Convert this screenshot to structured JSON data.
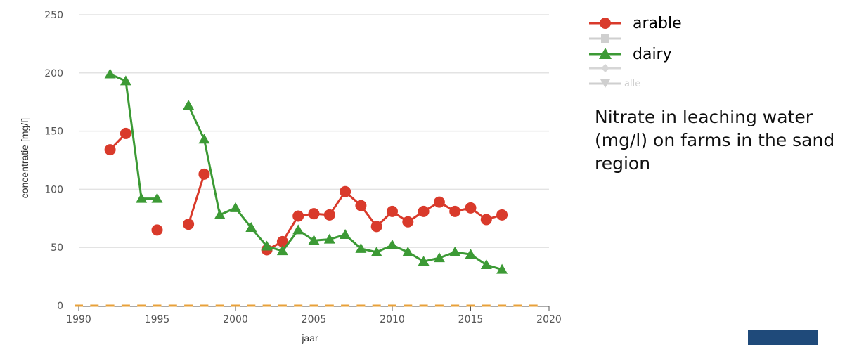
{
  "chart_data": {
    "type": "line",
    "title": "",
    "xlabel": "jaar",
    "ylabel": "concentratie [mg/l]",
    "xlim": [
      1990,
      2020
    ],
    "ylim": [
      0,
      250
    ],
    "x_ticks": [
      "1990",
      "1995",
      "2000",
      "2005",
      "2010",
      "2015",
      "2020"
    ],
    "y_ticks": [
      "0",
      "50",
      "100",
      "150",
      "200",
      "250"
    ],
    "grid": "horizontal",
    "series": [
      {
        "name": "arable",
        "color": "#d93a2b",
        "marker": "circle",
        "points": [
          [
            1992,
            134
          ],
          [
            1993,
            148
          ],
          [
            null,
            null
          ],
          [
            1995,
            65
          ],
          [
            null,
            null
          ],
          [
            1997,
            70
          ],
          [
            1998,
            113
          ],
          [
            null,
            null
          ],
          [
            2002,
            48
          ],
          [
            2003,
            55
          ],
          [
            2004,
            77
          ],
          [
            2005,
            79
          ],
          [
            2006,
            78
          ],
          [
            2007,
            98
          ],
          [
            2008,
            86
          ],
          [
            2009,
            68
          ],
          [
            2010,
            81
          ],
          [
            2011,
            72
          ],
          [
            2012,
            81
          ],
          [
            2013,
            89
          ],
          [
            2014,
            81
          ],
          [
            2015,
            84
          ],
          [
            2016,
            74
          ],
          [
            2017,
            78
          ]
        ]
      },
      {
        "name": "dairy",
        "color": "#3c9a35",
        "marker": "triangle",
        "points": [
          [
            1992,
            199
          ],
          [
            1993,
            193
          ],
          [
            1994,
            92
          ],
          [
            1995,
            92
          ],
          [
            null,
            null
          ],
          [
            1997,
            172
          ],
          [
            1998,
            143
          ],
          [
            1999,
            78
          ],
          [
            2000,
            84
          ],
          [
            2001,
            67
          ],
          [
            2002,
            51
          ],
          [
            2003,
            47
          ],
          [
            2004,
            65
          ],
          [
            2005,
            56
          ],
          [
            2006,
            57
          ],
          [
            2007,
            61
          ],
          [
            2008,
            49
          ],
          [
            2009,
            46
          ],
          [
            2010,
            52
          ],
          [
            2011,
            46
          ],
          [
            2012,
            38
          ],
          [
            2013,
            41
          ],
          [
            2014,
            46
          ],
          [
            2015,
            44
          ],
          [
            2016,
            35
          ],
          [
            2017,
            31
          ]
        ]
      }
    ],
    "baseline": {
      "color": "#e8a13a",
      "y": 0,
      "x": [
        1990,
        1991,
        1992,
        1993,
        1994,
        1995,
        1996,
        1997,
        1998,
        1999,
        2000,
        2001,
        2002,
        2003,
        2004,
        2005,
        2006,
        2007,
        2008,
        2009,
        2010,
        2011,
        2012,
        2013,
        2014,
        2015,
        2016,
        2017,
        2018,
        2019
      ]
    }
  },
  "legend": {
    "items": [
      {
        "label": "arable",
        "color": "#d93a2b",
        "marker": "circle",
        "faded": false
      },
      {
        "label": "",
        "color": "#c8c8c8",
        "marker": "square",
        "faded": true
      },
      {
        "label": "dairy",
        "color": "#3c9a35",
        "marker": "triangle",
        "faded": false
      },
      {
        "label": "",
        "color": "#c8c8c8",
        "marker": "diamond",
        "faded": true
      },
      {
        "label": "alle",
        "color": "#c8c8c8",
        "marker": "triangle-down",
        "faded": true
      }
    ]
  },
  "caption": "Nitrate in leaching water (mg/l) on farms in the sand region",
  "colors": {
    "blue_box": "#1f4a7a",
    "grid": "#e3e3e3"
  }
}
